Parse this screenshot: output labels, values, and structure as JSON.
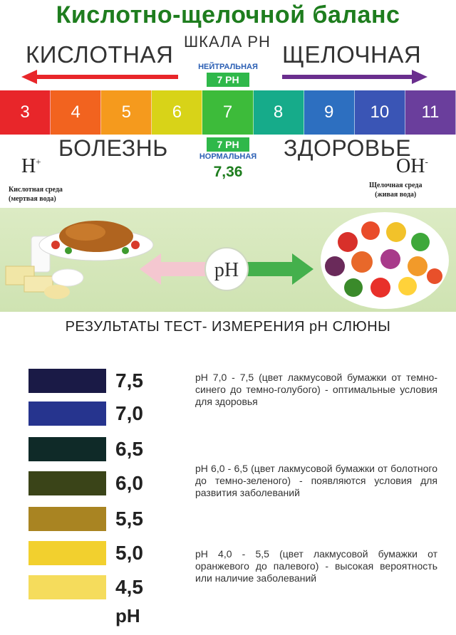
{
  "title": "Кислотно-щелочной баланс",
  "scale_label": "ШКАЛА PH",
  "acid_label": "КИСЛОТНАЯ",
  "alkaline_label": "ЩЕЛОЧНАЯ",
  "neutral_label": "НЕЙТРАЛЬНАЯ",
  "neutral_badge": "7 PH",
  "scale_values": [
    "3",
    "4",
    "5",
    "6",
    "7",
    "8",
    "9",
    "10",
    "11"
  ],
  "scale_colors": [
    "#e8262a",
    "#f2631f",
    "#f59a1d",
    "#d8d318",
    "#3dbb3a",
    "#16ab8a",
    "#2d6fc0",
    "#3a55b5",
    "#6a3e9c"
  ],
  "disease_label": "БОЛЕЗНЬ",
  "health_label": "ЗДОРОВЬЕ",
  "normal_badge": "7 PH",
  "normal_label": "НОРМАЛЬНАЯ",
  "normal_value": "7,36",
  "ion_h": "H",
  "ion_h_sup": "+",
  "ion_oh": "OH",
  "ion_oh_sup": "-",
  "acid_env_line1": "Кислотная среда",
  "acid_env_line2": "(мертвая вода)",
  "alk_env_line1": "Щелочная среда",
  "alk_env_line2": "(живая вода)",
  "ph_center": "pH",
  "results_title": "РЕЗУЛЬТАТЫ ТЕСТ- ИЗМЕРЕНИЯ  pH СЛЮНЫ",
  "swatches": [
    {
      "value": "7,5",
      "color": "#1a1a46"
    },
    {
      "value": "7,0",
      "color": "#26348e"
    },
    {
      "value": "6,5",
      "color": "#0f2a28"
    },
    {
      "value": "6,0",
      "color": "#3a4418"
    },
    {
      "value": "5,5",
      "color": "#a98422"
    },
    {
      "value": "5,0",
      "color": "#f2d02e"
    },
    {
      "value": "4,5",
      "color": "#f5dc5c"
    }
  ],
  "ph_unit": "pH",
  "descriptions": [
    "pH 7,0 - 7,5 (цвет лакмусовой бумажки от темно-синего до темно-голубого) - оптимальные условия для здоровья",
    "pH 6,0 - 6,5 (цвет лакмусовой бумажки от болотного до темно-зеленого) - появляются условия для развития заболеваний",
    "pH 4,0 - 5,5 (цвет лакмусовой бумажки от оранжевого до палевого) - высокая вероятность или наличие заболеваний"
  ]
}
